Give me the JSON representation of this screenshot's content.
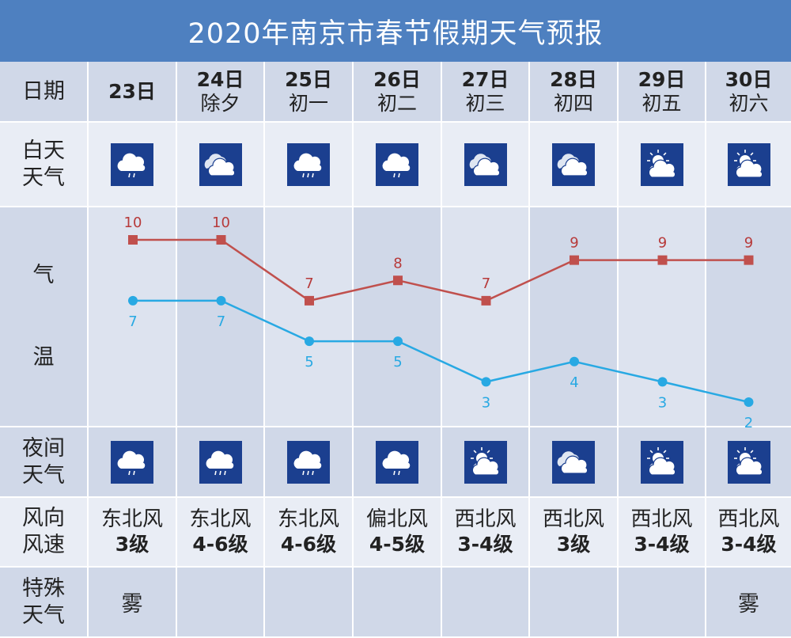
{
  "title": "2020年南京市春节假期天气预报",
  "row_labels": {
    "date": "日期",
    "day_weather": [
      "白天",
      "天气"
    ],
    "temp": [
      "气",
      "温"
    ],
    "night_weather": [
      "夜间",
      "天气"
    ],
    "wind": [
      "风向",
      "风速"
    ],
    "special": [
      "特殊",
      "天气"
    ]
  },
  "days": [
    {
      "day": "23日",
      "lunar": "",
      "day_icon": "light-rain-icon",
      "night_icon": "light-rain-icon",
      "wind_dir": "东北风",
      "wind_level": "3级",
      "special": "雾"
    },
    {
      "day": "24日",
      "lunar": "除夕",
      "day_icon": "cloudy-icon",
      "night_icon": "rain-icon",
      "wind_dir": "东北风",
      "wind_level": "4-6级",
      "special": ""
    },
    {
      "day": "25日",
      "lunar": "初一",
      "day_icon": "rain-icon",
      "night_icon": "rain-icon",
      "wind_dir": "东北风",
      "wind_level": "4-6级",
      "special": ""
    },
    {
      "day": "26日",
      "lunar": "初二",
      "day_icon": "light-rain-icon",
      "night_icon": "light-rain-icon",
      "wind_dir": "偏北风",
      "wind_level": "4-5级",
      "special": ""
    },
    {
      "day": "27日",
      "lunar": "初三",
      "day_icon": "cloudy-icon",
      "night_icon": "partly-cloudy-icon",
      "wind_dir": "西北风",
      "wind_level": "3-4级",
      "special": ""
    },
    {
      "day": "28日",
      "lunar": "初四",
      "day_icon": "cloudy-icon",
      "night_icon": "cloudy-icon",
      "wind_dir": "西北风",
      "wind_level": "3级",
      "special": ""
    },
    {
      "day": "29日",
      "lunar": "初五",
      "day_icon": "partly-cloudy-icon",
      "night_icon": "partly-cloudy-icon",
      "wind_dir": "西北风",
      "wind_level": "3-4级",
      "special": ""
    },
    {
      "day": "30日",
      "lunar": "初六",
      "day_icon": "partly-cloudy-icon",
      "night_icon": "partly-cloudy-icon",
      "wind_dir": "西北风",
      "wind_level": "3-4级",
      "special": "雾"
    }
  ],
  "chart_data": {
    "type": "line",
    "categories": [
      "23日",
      "24日",
      "25日",
      "26日",
      "27日",
      "28日",
      "29日",
      "30日"
    ],
    "series": [
      {
        "values": [
          10,
          10,
          7,
          8,
          7,
          9,
          9,
          9
        ],
        "color": "#c0504d",
        "marker": "square"
      },
      {
        "values": [
          7,
          7,
          5,
          5,
          3,
          4,
          3,
          2
        ],
        "color": "#28a9e3",
        "marker": "circle"
      }
    ]
  },
  "colors": {
    "title_bg": "#4e80c0",
    "row_light": "#e9edf4",
    "row_mid": "#d0d8e8",
    "icon_bg": "#1b3f8f",
    "high_line": "#c0504d",
    "low_line": "#28a9e3"
  }
}
